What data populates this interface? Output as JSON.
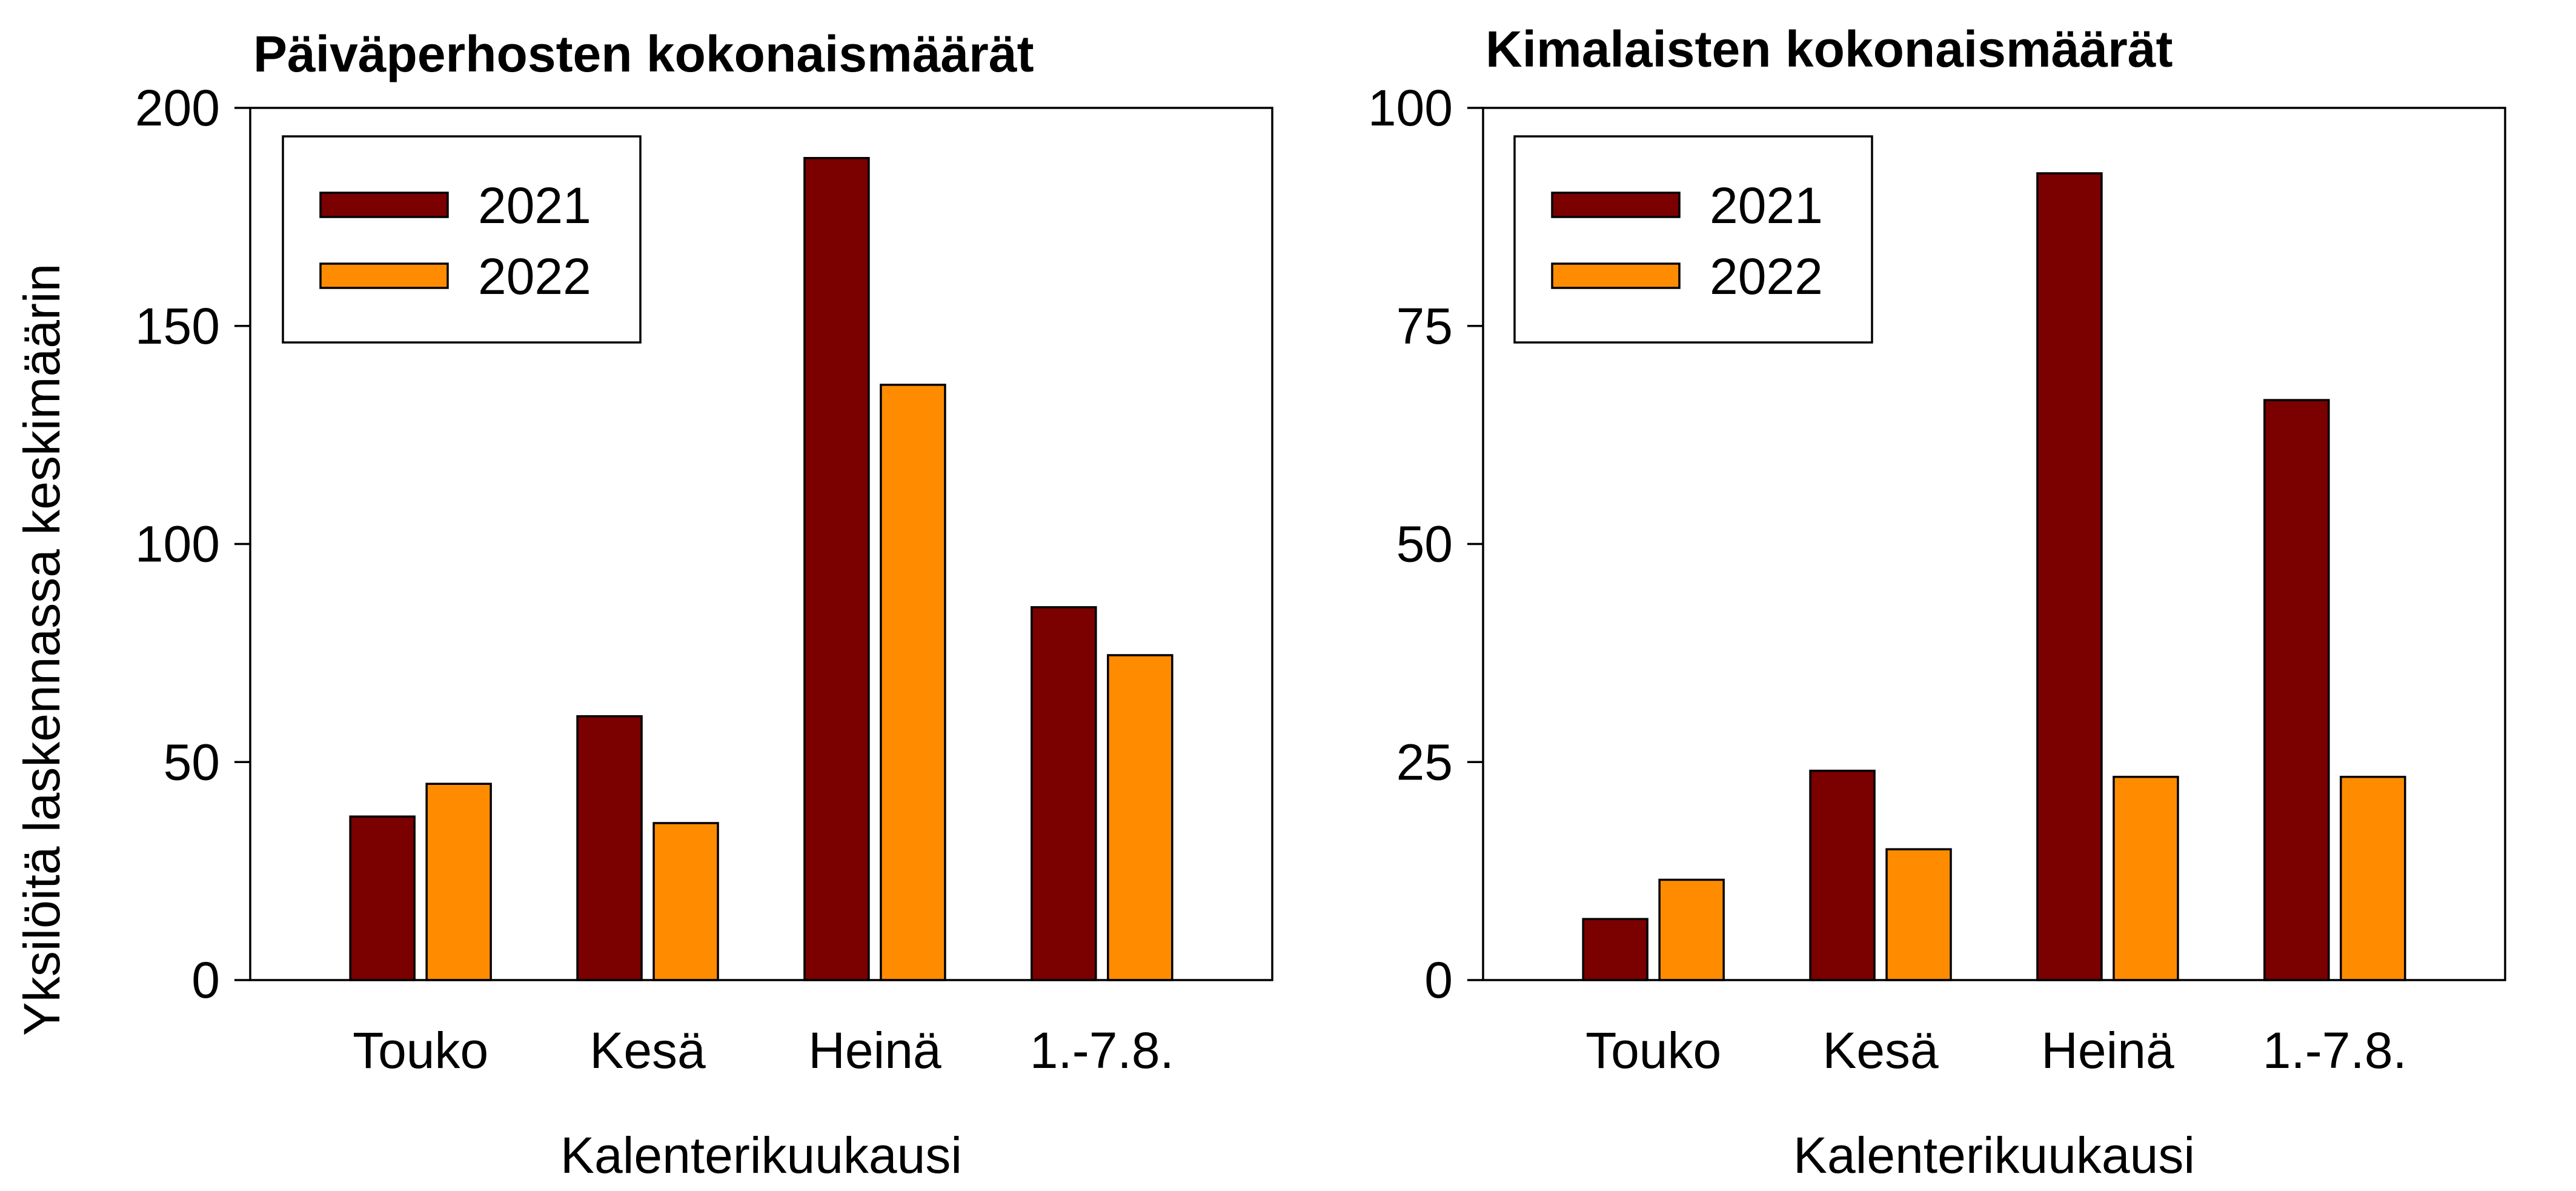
{
  "y_axis_label": "Yksilöitä laskennassa keskimäärin",
  "colors": {
    "2021": "#7b0000",
    "2022": "#ff8c00"
  },
  "chart_data": [
    {
      "type": "bar",
      "title": "Päiväperhosten kokonaismäärät",
      "xlabel": "Kalenterikuukausi",
      "ylabel": "Yksilöitä laskennassa keskimäärin",
      "categories": [
        "Touko",
        "Kesä",
        "Heinä",
        "1.-7.8."
      ],
      "ylim": [
        0,
        200
      ],
      "yticks": [
        0,
        50,
        100,
        150,
        200
      ],
      "series": [
        {
          "name": "2021",
          "color": "#7b0000",
          "values": [
            37.5,
            60.5,
            188.5,
            85.5
          ]
        },
        {
          "name": "2022",
          "color": "#ff8c00",
          "values": [
            45,
            36,
            136.5,
            74.5
          ]
        }
      ],
      "legend": "top-left",
      "grid": false
    },
    {
      "type": "bar",
      "title": "Kimalaisten kokonaismäärät",
      "xlabel": "Kalenterikuukausi",
      "ylabel": "",
      "categories": [
        "Touko",
        "Kesä",
        "Heinä",
        "1.-7.8."
      ],
      "ylim": [
        0,
        100
      ],
      "yticks": [
        0,
        25,
        50,
        75,
        100
      ],
      "series": [
        {
          "name": "2021",
          "color": "#7b0000",
          "values": [
            7,
            24,
            92.5,
            66.5
          ]
        },
        {
          "name": "2022",
          "color": "#ff8c00",
          "values": [
            11.5,
            15,
            23.3,
            23.3
          ]
        }
      ],
      "legend": "top-left",
      "grid": false
    }
  ]
}
